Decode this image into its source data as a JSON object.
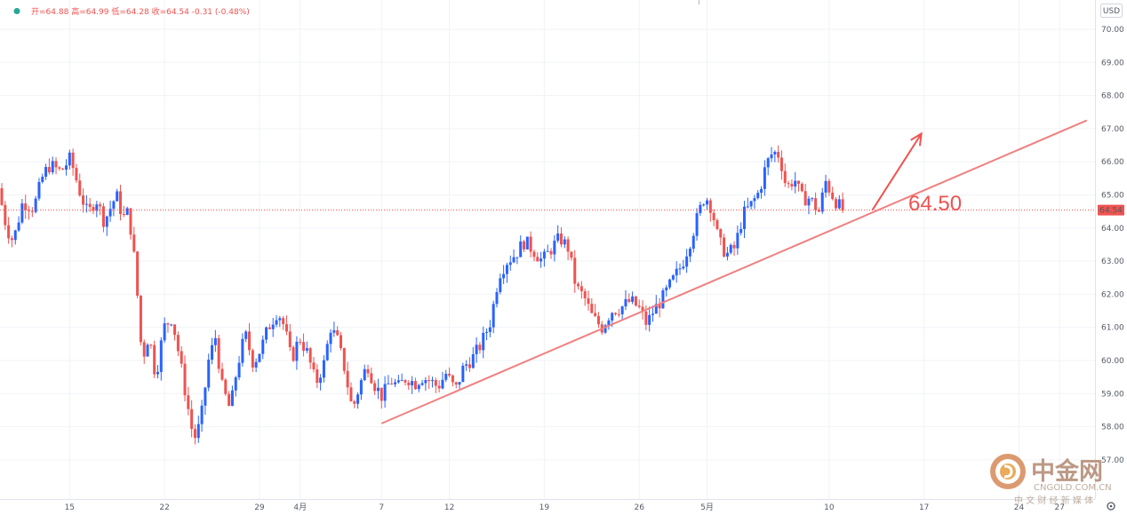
{
  "ohlc_bar": {
    "open": "开=64.88",
    "high": "高=64.99",
    "low": "低=64.28",
    "close": "收=64.54",
    "change": "-0.31 (-0.48%)"
  },
  "currency": "USD",
  "last_price_label": "64.54",
  "annotation_text": "64.50",
  "watermark": {
    "title": "中金网",
    "site": "CNGOLD.COM.CN",
    "tagline": "中 文 财 经 新 媒 体"
  },
  "colors": {
    "up": "#2962ff",
    "down": "#ef5350",
    "trendline": "#f08080",
    "grid": "#f0f3f7",
    "price_label_bg": "#ef5350",
    "status_dot": "#26a69a",
    "watermark": "#c2a38f"
  },
  "chart_data": {
    "type": "candlestick",
    "y_unit": "USD",
    "ylim": [
      56,
      70.5
    ],
    "y_ticks": [
      {
        "value": 57,
        "label": "57.00"
      },
      {
        "value": 58,
        "label": "58.00"
      },
      {
        "value": 59,
        "label": "59.00"
      },
      {
        "value": 60,
        "label": "60.00"
      },
      {
        "value": 61,
        "label": "61.00"
      },
      {
        "value": 62,
        "label": "62.00"
      },
      {
        "value": 63,
        "label": "63.00"
      },
      {
        "value": 64,
        "label": "64.00"
      },
      {
        "value": 65,
        "label": "65.00"
      },
      {
        "value": 66,
        "label": "66.00"
      },
      {
        "value": 67,
        "label": "67.00"
      },
      {
        "value": 68,
        "label": "68.00"
      },
      {
        "value": 69,
        "label": "69.00"
      },
      {
        "value": 70,
        "label": "70.00"
      }
    ],
    "x_ticks": [
      {
        "day": 15,
        "label": "15"
      },
      {
        "day": 22,
        "label": "22"
      },
      {
        "day": 29,
        "label": "29"
      },
      {
        "day": 32,
        "label": "4月"
      },
      {
        "day": 38,
        "label": "7"
      },
      {
        "day": 43,
        "label": "12"
      },
      {
        "day": 50,
        "label": "19"
      },
      {
        "day": 57,
        "label": "26"
      },
      {
        "day": 62,
        "label": "5月"
      },
      {
        "day": 71,
        "label": "10"
      },
      {
        "day": 78,
        "label": "17"
      },
      {
        "day": 85,
        "label": "24"
      },
      {
        "day": 88,
        "label": "27"
      }
    ],
    "x_range_days": [
      10,
      90
    ],
    "last_price": 64.54,
    "trendline": {
      "start": {
        "day": 38.0,
        "price": 58.1
      },
      "end": {
        "day": 90.0,
        "price": 67.25
      }
    },
    "arrow": {
      "start": {
        "day": 74.2,
        "price": 64.55
      },
      "end": {
        "day": 77.8,
        "price": 66.85
      }
    },
    "anchors": [
      {
        "day": 10.0,
        "price": 65.2
      },
      {
        "day": 10.6,
        "price": 64.0
      },
      {
        "day": 11.1,
        "price": 63.6
      },
      {
        "day": 11.8,
        "price": 64.8
      },
      {
        "day": 12.6,
        "price": 64.6
      },
      {
        "day": 13.3,
        "price": 65.6
      },
      {
        "day": 13.8,
        "price": 65.9
      },
      {
        "day": 14.6,
        "price": 65.7
      },
      {
        "day": 15.3,
        "price": 66.1
      },
      {
        "day": 16.0,
        "price": 65.1
      },
      {
        "day": 16.6,
        "price": 64.4
      },
      {
        "day": 17.2,
        "price": 64.9
      },
      {
        "day": 17.8,
        "price": 64.2
      },
      {
        "day": 18.7,
        "price": 65.0
      },
      {
        "day": 19.2,
        "price": 64.3
      },
      {
        "day": 19.6,
        "price": 64.5
      },
      {
        "day": 20.1,
        "price": 62.8
      },
      {
        "day": 20.6,
        "price": 60.0
      },
      {
        "day": 21.1,
        "price": 60.8
      },
      {
        "day": 21.6,
        "price": 59.5
      },
      {
        "day": 22.2,
        "price": 61.0
      },
      {
        "day": 22.8,
        "price": 61.3
      },
      {
        "day": 23.3,
        "price": 60.2
      },
      {
        "day": 23.8,
        "price": 59.0
      },
      {
        "day": 24.4,
        "price": 57.6
      },
      {
        "day": 24.9,
        "price": 58.1
      },
      {
        "day": 25.5,
        "price": 60.0
      },
      {
        "day": 26.0,
        "price": 60.7
      },
      {
        "day": 26.5,
        "price": 59.2
      },
      {
        "day": 27.1,
        "price": 58.5
      },
      {
        "day": 27.6,
        "price": 59.8
      },
      {
        "day": 28.2,
        "price": 60.8
      },
      {
        "day": 28.8,
        "price": 59.9
      },
      {
        "day": 29.4,
        "price": 60.4
      },
      {
        "day": 29.9,
        "price": 61.0
      },
      {
        "day": 30.6,
        "price": 61.5
      },
      {
        "day": 31.1,
        "price": 61.0
      },
      {
        "day": 31.6,
        "price": 60.0
      },
      {
        "day": 32.2,
        "price": 60.7
      },
      {
        "day": 32.8,
        "price": 60.2
      },
      {
        "day": 33.4,
        "price": 59.3
      },
      {
        "day": 34.0,
        "price": 59.9
      },
      {
        "day": 34.5,
        "price": 61.0
      },
      {
        "day": 35.0,
        "price": 60.6
      },
      {
        "day": 35.5,
        "price": 59.8
      },
      {
        "day": 36.1,
        "price": 58.5
      },
      {
        "day": 36.6,
        "price": 59.2
      },
      {
        "day": 37.2,
        "price": 59.9
      },
      {
        "day": 37.7,
        "price": 59.3
      },
      {
        "day": 38.3,
        "price": 58.9
      },
      {
        "day": 38.9,
        "price": 59.4
      },
      {
        "day": 39.5,
        "price": 59.2
      },
      {
        "day": 40.1,
        "price": 59.5
      },
      {
        "day": 40.7,
        "price": 59.3
      },
      {
        "day": 41.2,
        "price": 59.5
      },
      {
        "day": 41.8,
        "price": 59.4
      },
      {
        "day": 42.4,
        "price": 59.2
      },
      {
        "day": 43.0,
        "price": 59.6
      },
      {
        "day": 43.7,
        "price": 59.1
      },
      {
        "day": 44.3,
        "price": 59.8
      },
      {
        "day": 45.0,
        "price": 60.1
      },
      {
        "day": 45.6,
        "price": 60.5
      },
      {
        "day": 46.3,
        "price": 61.2
      },
      {
        "day": 46.9,
        "price": 62.6
      },
      {
        "day": 47.5,
        "price": 63.0
      },
      {
        "day": 48.1,
        "price": 63.2
      },
      {
        "day": 48.8,
        "price": 63.6
      },
      {
        "day": 49.5,
        "price": 63.3
      },
      {
        "day": 50.1,
        "price": 63.0
      },
      {
        "day": 50.8,
        "price": 63.4
      },
      {
        "day": 51.4,
        "price": 63.7
      },
      {
        "day": 52.0,
        "price": 63.4
      },
      {
        "day": 52.6,
        "price": 62.2
      },
      {
        "day": 53.2,
        "price": 61.9
      },
      {
        "day": 53.8,
        "price": 61.3
      },
      {
        "day": 54.5,
        "price": 61.0
      },
      {
        "day": 55.2,
        "price": 61.5
      },
      {
        "day": 55.9,
        "price": 61.6
      },
      {
        "day": 56.6,
        "price": 61.8
      },
      {
        "day": 57.2,
        "price": 61.6
      },
      {
        "day": 57.8,
        "price": 61.1
      },
      {
        "day": 58.3,
        "price": 61.5
      },
      {
        "day": 59.0,
        "price": 61.9
      },
      {
        "day": 59.7,
        "price": 62.4
      },
      {
        "day": 60.4,
        "price": 62.9
      },
      {
        "day": 61.0,
        "price": 63.6
      },
      {
        "day": 61.6,
        "price": 64.4
      },
      {
        "day": 62.1,
        "price": 65.0
      },
      {
        "day": 62.6,
        "price": 64.6
      },
      {
        "day": 63.1,
        "price": 63.6
      },
      {
        "day": 63.7,
        "price": 63.2
      },
      {
        "day": 64.3,
        "price": 63.4
      },
      {
        "day": 64.9,
        "price": 64.4
      },
      {
        "day": 65.5,
        "price": 64.7
      },
      {
        "day": 66.1,
        "price": 65.1
      },
      {
        "day": 66.6,
        "price": 65.9
      },
      {
        "day": 67.1,
        "price": 66.3
      },
      {
        "day": 67.6,
        "price": 66.2
      },
      {
        "day": 68.1,
        "price": 65.2
      },
      {
        "day": 68.7,
        "price": 65.5
      },
      {
        "day": 69.2,
        "price": 64.9
      },
      {
        "day": 69.8,
        "price": 64.9
      },
      {
        "day": 70.5,
        "price": 64.5
      },
      {
        "day": 71.0,
        "price": 65.4
      },
      {
        "day": 71.6,
        "price": 64.9
      },
      {
        "day": 72.2,
        "price": 64.54
      }
    ]
  }
}
